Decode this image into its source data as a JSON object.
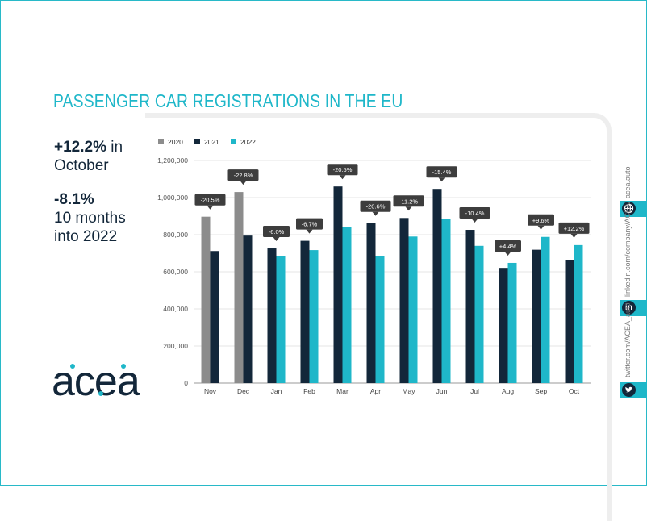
{
  "header": {
    "title": "PASSENGER CAR REGISTRATIONS IN THE EU"
  },
  "stats": {
    "monthly": {
      "value": "+12.2%",
      "suffix": " in",
      "line2": "October"
    },
    "ytd": {
      "value": "-8.1%",
      "line2": "10 months",
      "line3": "into 2022"
    }
  },
  "brand": {
    "logo_text": "acea",
    "colors": {
      "teal": "#1fb7c9",
      "navy": "#13273a"
    }
  },
  "social": {
    "website": "acea.auto",
    "linkedin": "linkedin.com/company/ACEA/",
    "twitter": "twitter.com/ACEA_auto"
  },
  "chart_data": {
    "type": "bar",
    "categories": [
      "Nov",
      "Dec",
      "Jan",
      "Feb",
      "Mar",
      "Apr",
      "May",
      "Jun",
      "Jul",
      "Aug",
      "Sep",
      "Oct"
    ],
    "series": [
      {
        "name": "2020",
        "color": "#8c8c8c",
        "values": [
          897000,
          1030000,
          null,
          null,
          null,
          null,
          null,
          null,
          null,
          null,
          null,
          null
        ]
      },
      {
        "name": "2021",
        "color": "#13273a",
        "values": [
          712000,
          795000,
          726000,
          767000,
          1060000,
          862000,
          890000,
          1047000,
          826000,
          621000,
          719000,
          662000
        ]
      },
      {
        "name": "2022",
        "color": "#1fb7c9",
        "values": [
          null,
          null,
          683000,
          717000,
          843000,
          684000,
          790000,
          885000,
          740000,
          648000,
          788000,
          744000
        ]
      }
    ],
    "change_labels": [
      "-20.5%",
      "-22.8%",
      "-6.0%",
      "-6.7%",
      "-20.5%",
      "-20.6%",
      "-11.2%",
      "-15.4%",
      "-10.4%",
      "+4.4%",
      "+9.6%",
      "+12.2%"
    ],
    "y_ticks": [
      "0",
      "200,000",
      "400,000",
      "600,000",
      "800,000",
      "1,000,000",
      "1,200,000"
    ],
    "ylim": [
      0,
      1200000
    ],
    "grid": true,
    "legend_position": "top-left"
  }
}
